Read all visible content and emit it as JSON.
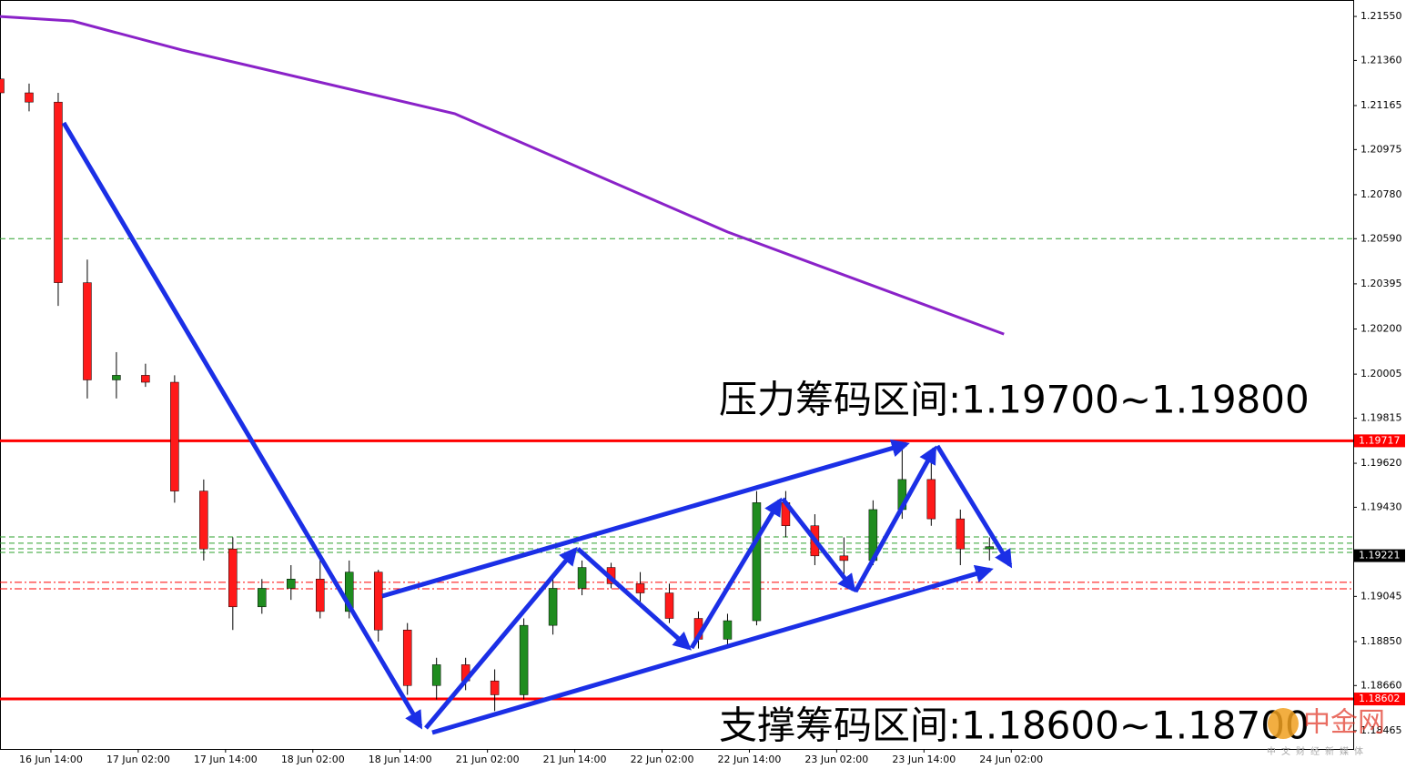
{
  "chart_data": {
    "type": "candlestick",
    "xlim": [
      0,
      186
    ],
    "ylim": [
      1.18386,
      1.21621
    ],
    "xticks": [
      {
        "value": 7,
        "label": "16 Jun 14:00"
      },
      {
        "value": 19,
        "label": "17 Jun 02:00"
      },
      {
        "value": 31,
        "label": "17 Jun 14:00"
      },
      {
        "value": 43,
        "label": "18 Jun 02:00"
      },
      {
        "value": 55,
        "label": "18 Jun 14:00"
      },
      {
        "value": 67,
        "label": "21 Jun 02:00"
      },
      {
        "value": 79,
        "label": "21 Jun 14:00"
      },
      {
        "value": 91,
        "label": "22 Jun 02:00"
      },
      {
        "value": 103,
        "label": "22 Jun 14:00"
      },
      {
        "value": 115,
        "label": "23 Jun 02:00"
      },
      {
        "value": 127,
        "label": "23 Jun 14:00"
      },
      {
        "value": 139,
        "label": "24 Jun 02:00"
      }
    ],
    "yticks": [
      {
        "value": 1.2155,
        "label": "1.21550"
      },
      {
        "value": 1.2136,
        "label": "1.21360"
      },
      {
        "value": 1.21165,
        "label": "1.21165"
      },
      {
        "value": 1.20975,
        "label": "1.20975"
      },
      {
        "value": 1.2078,
        "label": "1.20780"
      },
      {
        "value": 1.2059,
        "label": "1.20590"
      },
      {
        "value": 1.20395,
        "label": "1.20395"
      },
      {
        "value": 1.202,
        "label": "1.20200"
      },
      {
        "value": 1.20005,
        "label": "1.20005"
      },
      {
        "value": 1.19815,
        "label": "1.19815"
      },
      {
        "value": 1.1962,
        "label": "1.19620"
      },
      {
        "value": 1.1943,
        "label": "1.19430"
      },
      {
        "value": 1.19045,
        "label": "1.19045"
      },
      {
        "value": 1.1885,
        "label": "1.18850"
      },
      {
        "value": 1.1866,
        "label": "1.18660"
      },
      {
        "value": 1.18465,
        "label": "1.18465"
      }
    ],
    "candles": {
      "x": [
        0,
        4,
        8,
        12,
        16,
        20,
        24,
        28,
        32,
        36,
        40,
        44,
        48,
        52,
        56,
        60,
        64,
        68,
        72,
        76,
        80,
        84,
        88,
        92,
        96,
        100,
        104,
        108,
        112,
        116,
        120,
        124,
        128,
        132,
        136
      ],
      "open": [
        1.2128,
        1.2122,
        1.2118,
        1.204,
        1.1998,
        1.2,
        1.1997,
        1.195,
        1.1925,
        1.19,
        1.1908,
        1.1912,
        1.1898,
        1.1915,
        1.189,
        1.1866,
        1.1875,
        1.1868,
        1.1862,
        1.1892,
        1.1908,
        1.1917,
        1.191,
        1.1906,
        1.1895,
        1.1886,
        1.1894,
        1.1945,
        1.1935,
        1.1922,
        1.192,
        1.1942,
        1.1955,
        1.1938,
        1.1925
      ],
      "high": [
        1.2131,
        1.2126,
        1.2122,
        1.205,
        1.201,
        1.2005,
        1.2,
        1.1955,
        1.193,
        1.1912,
        1.1918,
        1.1922,
        1.192,
        1.1916,
        1.1893,
        1.1878,
        1.1878,
        1.1873,
        1.1895,
        1.1912,
        1.192,
        1.1919,
        1.1915,
        1.191,
        1.1898,
        1.1897,
        1.195,
        1.195,
        1.194,
        1.193,
        1.1946,
        1.1968,
        1.1962,
        1.1942,
        1.193
      ],
      "low": [
        1.212,
        1.2114,
        1.203,
        1.199,
        1.199,
        1.1995,
        1.1945,
        1.192,
        1.189,
        1.1897,
        1.1903,
        1.1895,
        1.1895,
        1.1885,
        1.1862,
        1.186,
        1.1864,
        1.1855,
        1.186,
        1.1888,
        1.1905,
        1.1908,
        1.1902,
        1.1893,
        1.1882,
        1.1883,
        1.1892,
        1.193,
        1.1918,
        1.1912,
        1.1918,
        1.1938,
        1.1935,
        1.1918,
        1.192
      ],
      "close": [
        1.2122,
        1.2118,
        1.204,
        1.1998,
        1.2,
        1.1997,
        1.195,
        1.1925,
        1.19,
        1.1908,
        1.1912,
        1.1898,
        1.1915,
        1.189,
        1.1866,
        1.1875,
        1.1868,
        1.1862,
        1.1892,
        1.1908,
        1.1917,
        1.191,
        1.1906,
        1.1895,
        1.1886,
        1.1894,
        1.1945,
        1.1935,
        1.1922,
        1.192,
        1.1942,
        1.1955,
        1.1938,
        1.1925,
        1.1926
      ],
      "up_color": "#1f8c1f",
      "down_color": "#ff1a1a"
    },
    "ma": {
      "color": "#8a22c8",
      "x": [
        0,
        10,
        25,
        62.5,
        100,
        138
      ],
      "values": [
        1.2155,
        1.2153,
        1.21405,
        1.2113,
        1.20619,
        1.20178
      ]
    },
    "levels": [
      {
        "value": 1.19717,
        "label": "1.19717",
        "color": "#ff0000",
        "style": "solid"
      },
      {
        "value": 1.18602,
        "label": "1.18602",
        "color": "#ff0000",
        "style": "solid"
      },
      {
        "value": 1.19221,
        "label": "1.19221",
        "color": "#000000",
        "style": "none"
      },
      {
        "value": 1.2059,
        "color": "#2ca02c",
        "style": "dash"
      },
      {
        "value": 1.19302,
        "color": "#2ca02c",
        "style": "dash"
      },
      {
        "value": 1.19275,
        "color": "#2ca02c",
        "style": "dash"
      },
      {
        "value": 1.19251,
        "color": "#2ca02c",
        "style": "dash"
      },
      {
        "value": 1.19235,
        "color": "#2ca02c",
        "style": "dash"
      },
      {
        "value": 1.19106,
        "color": "#ff0000",
        "style": "dashdot"
      },
      {
        "value": 1.19078,
        "color": "#ff0000",
        "style": "dashdot"
      }
    ],
    "annotations": [
      "压力筹码区间:1.19700~1.19800",
      "支撑筹码区间:1.18600~1.18700"
    ],
    "watermark": {
      "name": "中金网",
      "slogan": "中文财经新媒体"
    }
  }
}
